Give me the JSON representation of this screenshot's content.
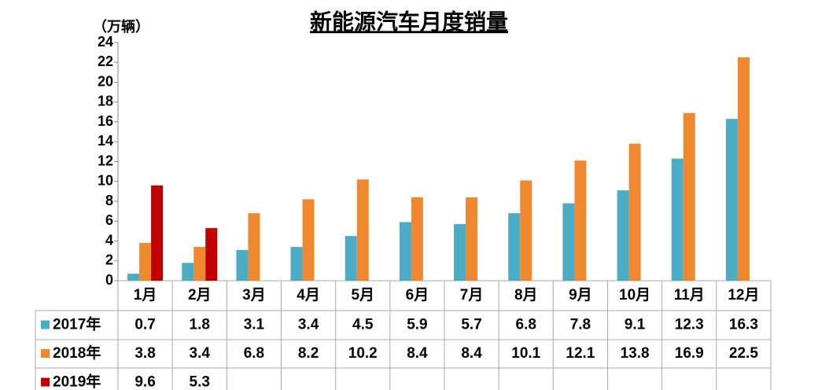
{
  "chart_data": {
    "type": "bar",
    "title": "新能源汽车月度销量",
    "y_label": "（万辆）",
    "categories": [
      "1月",
      "2月",
      "3月",
      "4月",
      "5月",
      "6月",
      "7月",
      "8月",
      "9月",
      "10月",
      "11月",
      "12月"
    ],
    "series": [
      {
        "name": "2017年",
        "color": "#4bacc6",
        "values": [
          0.7,
          1.8,
          3.1,
          3.4,
          4.5,
          5.9,
          5.7,
          6.8,
          7.8,
          9.1,
          12.3,
          16.3
        ]
      },
      {
        "name": "2018年",
        "color": "#f0882f",
        "values": [
          3.8,
          3.4,
          6.8,
          8.2,
          10.2,
          8.4,
          8.4,
          10.1,
          12.1,
          13.8,
          16.9,
          22.5
        ]
      },
      {
        "name": "2019年",
        "color": "#c00000",
        "values": [
          9.6,
          5.3,
          null,
          null,
          null,
          null,
          null,
          null,
          null,
          null,
          null,
          null
        ]
      }
    ],
    "ylim": [
      0,
      24
    ],
    "yticks": [
      0,
      2,
      4,
      6,
      8,
      10,
      12,
      14,
      16,
      18,
      20,
      22,
      24
    ]
  }
}
